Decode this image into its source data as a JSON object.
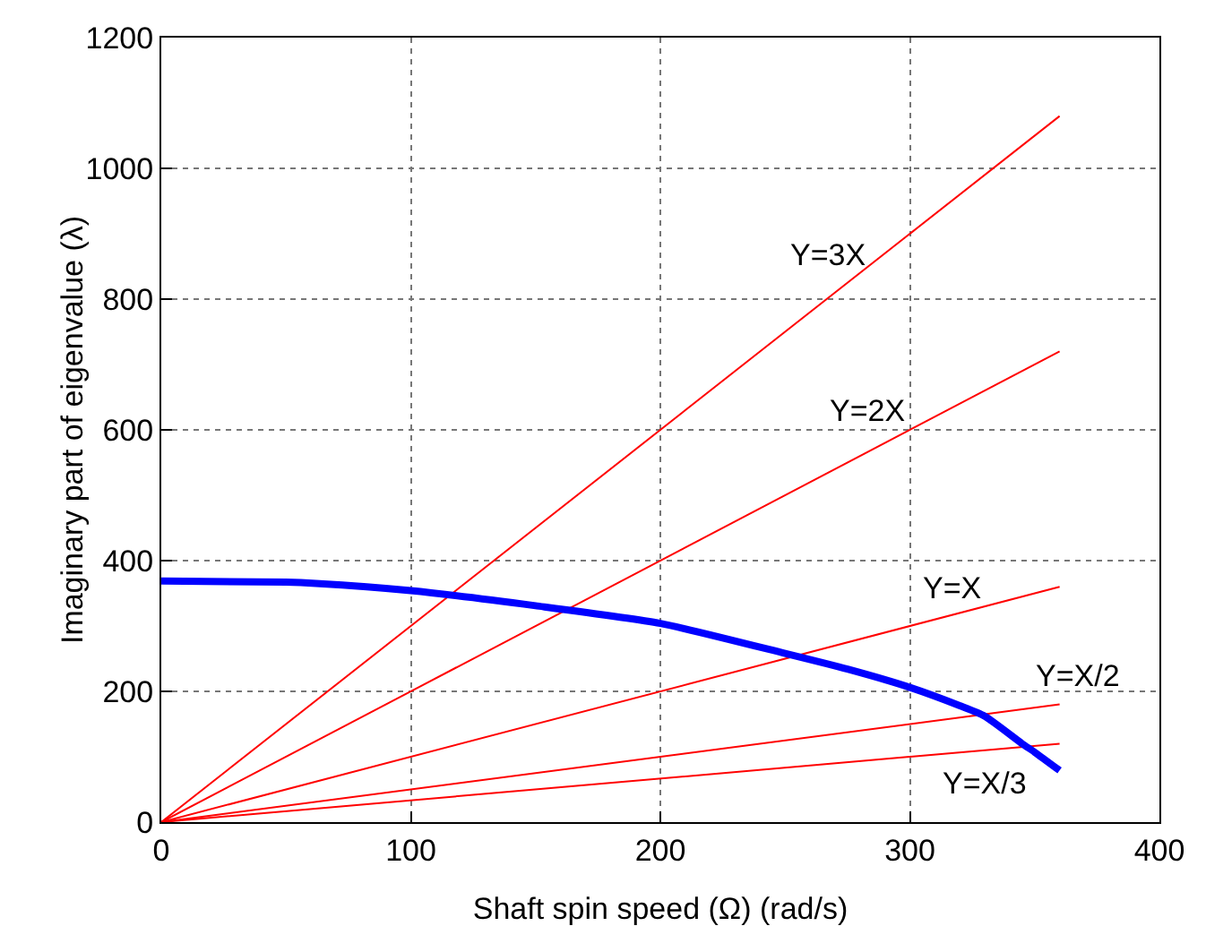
{
  "chart_data": {
    "type": "line",
    "xlabel": "Shaft spin speed (Ω) (rad/s)",
    "ylabel": "Imaginary part of eigenvalue (λ)",
    "xlim": [
      0,
      400
    ],
    "xticks": [
      0,
      100,
      200,
      300,
      400
    ],
    "ylim": [
      0,
      1200
    ],
    "yticks": [
      0,
      200,
      400,
      600,
      800,
      1000,
      1200
    ],
    "grid": true,
    "marker": "none",
    "line_style": "solid",
    "series": [
      {
        "name": "Y=3X",
        "color": "#ff0000",
        "x": [
          0,
          360
        ],
        "values": [
          0,
          1080
        ]
      },
      {
        "name": "Y=2X",
        "color": "#ff0000",
        "x": [
          0,
          360
        ],
        "values": [
          0,
          720
        ]
      },
      {
        "name": "Y=X",
        "color": "#ff0000",
        "x": [
          0,
          360
        ],
        "values": [
          0,
          360
        ]
      },
      {
        "name": "Y=X/2",
        "color": "#ff0000",
        "x": [
          0,
          360
        ],
        "values": [
          0,
          180
        ]
      },
      {
        "name": "Y=X/3",
        "color": "#ff0000",
        "x": [
          0,
          360
        ],
        "values": [
          0,
          120
        ]
      },
      {
        "color": "#0000ff",
        "x": [
          0,
          50,
          62,
          100,
          150,
          200,
          250,
          275,
          300,
          320,
          330,
          345,
          350,
          360
        ],
        "values": [
          369,
          367,
          365,
          354,
          331,
          304,
          258,
          234,
          206,
          178,
          162,
          120,
          107,
          79
        ]
      }
    ]
  }
}
